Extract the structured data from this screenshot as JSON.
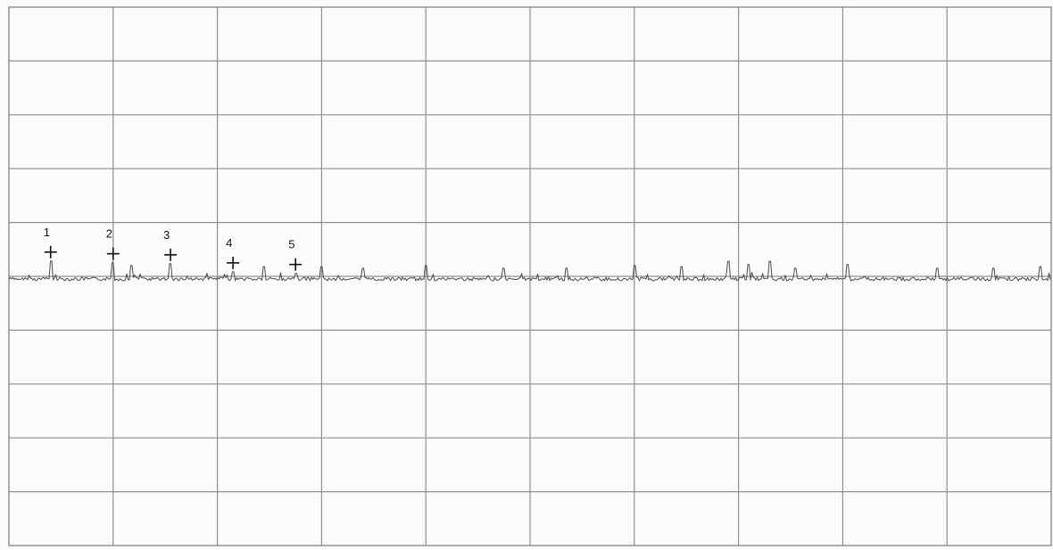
{
  "chart_data": {
    "type": "line",
    "title": "",
    "xlabel": "",
    "ylabel": "",
    "x_divisions": 10,
    "y_divisions": 10,
    "grid": true,
    "trace_color": "#4b4b4b",
    "baseline_division": 5.05,
    "markers": [
      {
        "label": "1",
        "x_div": 0.4,
        "y_div": 4.55
      },
      {
        "label": "2",
        "x_div": 1.0,
        "y_div": 4.58
      },
      {
        "label": "3",
        "x_div": 1.55,
        "y_div": 4.6
      },
      {
        "label": "4",
        "x_div": 2.15,
        "y_div": 4.75
      },
      {
        "label": "5",
        "x_div": 2.75,
        "y_div": 4.78
      }
    ],
    "spikes": [
      {
        "x_div": 1.18,
        "y_div": 4.8
      },
      {
        "x_div": 2.45,
        "y_div": 4.82
      },
      {
        "x_div": 3.0,
        "y_div": 4.82
      },
      {
        "x_div": 3.4,
        "y_div": 4.85
      },
      {
        "x_div": 4.0,
        "y_div": 4.8
      },
      {
        "x_div": 4.75,
        "y_div": 4.85
      },
      {
        "x_div": 5.35,
        "y_div": 4.85
      },
      {
        "x_div": 6.0,
        "y_div": 4.8
      },
      {
        "x_div": 6.45,
        "y_div": 4.82
      },
      {
        "x_div": 6.9,
        "y_div": 4.72
      },
      {
        "x_div": 7.1,
        "y_div": 4.78
      },
      {
        "x_div": 7.3,
        "y_div": 4.72
      },
      {
        "x_div": 7.55,
        "y_div": 4.85
      },
      {
        "x_div": 8.05,
        "y_div": 4.78
      },
      {
        "x_div": 8.9,
        "y_div": 4.85
      },
      {
        "x_div": 9.45,
        "y_div": 4.85
      },
      {
        "x_div": 9.9,
        "y_div": 4.82
      }
    ]
  }
}
